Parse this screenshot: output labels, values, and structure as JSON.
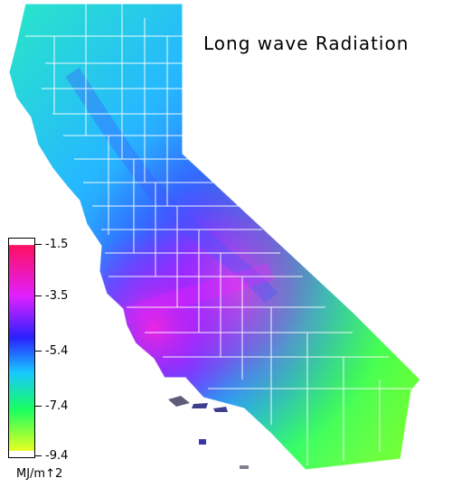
{
  "title": "Long wave Radiation",
  "legend": {
    "unit": "MJ/m↑2",
    "ticks": [
      "-1.5",
      "-3.5",
      "-5.4",
      "-7.4",
      "-9.4"
    ],
    "range": [
      -9.4,
      -1.5
    ],
    "colors": {
      "max": "#ff1060",
      "high": "#e020ff",
      "mid_high": "#2a20ff",
      "mid": "#18c8ff",
      "low": "#18ff60",
      "min": "#e8ff20"
    }
  },
  "map": {
    "region": "California",
    "boundary_color": "#ffffff"
  }
}
